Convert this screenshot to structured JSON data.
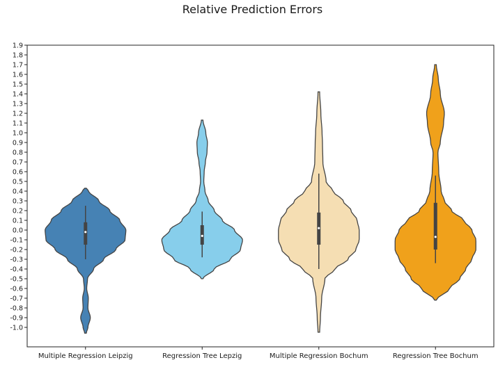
{
  "chart_data": {
    "type": "violin",
    "title": "Relative Prediction Errors",
    "xlabel": "",
    "ylabel": "",
    "categories": [
      "Multiple Regression Leipzig",
      "Regression Tree Lepzig",
      "Multiple Regression Bochum",
      "Regression Tree Bochum"
    ],
    "yticks": [
      "1.9",
      "1.8",
      "1.7",
      "1.6",
      "1.5",
      "1.4",
      "1.3",
      "1.2",
      "1.1",
      "1.0",
      "0.9",
      "0.8",
      "0.7",
      "0.6",
      "0.5",
      "0.4",
      "0.3",
      "0.2",
      "0.1",
      "0.0",
      "-0.1",
      "-0.2",
      "-0.3",
      "-0.4",
      "-0.5",
      "-0.6",
      "-0.7",
      "-0.8",
      "-0.9",
      "-1.0"
    ],
    "ylim": [
      -1.2,
      1.9
    ],
    "grid": false,
    "colors": [
      "#4682b4",
      "#87ceeb",
      "#f5deb3",
      "#f0a11b"
    ],
    "series": [
      {
        "category": "Multiple Regression Leipzig",
        "median": -0.02,
        "q1": -0.15,
        "q3": 0.08,
        "whisker_low": -0.3,
        "whisker_high": 0.25,
        "min": -1.06,
        "max": 0.43,
        "density": [
          [
            -1.06,
            0.02
          ],
          [
            -1.0,
            0.06
          ],
          [
            -0.9,
            0.12
          ],
          [
            -0.8,
            0.06
          ],
          [
            -0.7,
            0.07
          ],
          [
            -0.6,
            0.03
          ],
          [
            -0.5,
            0.05
          ],
          [
            -0.4,
            0.2
          ],
          [
            -0.3,
            0.45
          ],
          [
            -0.2,
            0.75
          ],
          [
            -0.1,
            0.98
          ],
          [
            0.0,
            1.0
          ],
          [
            0.1,
            0.85
          ],
          [
            0.2,
            0.6
          ],
          [
            0.3,
            0.33
          ],
          [
            0.4,
            0.08
          ],
          [
            0.43,
            0.02
          ]
        ]
      },
      {
        "category": "Regression Tree Lepzig",
        "median": -0.06,
        "q1": -0.15,
        "q3": 0.05,
        "whisker_low": -0.28,
        "whisker_high": 0.19,
        "min": -0.5,
        "max": 1.13,
        "density": [
          [
            -0.5,
            0.02
          ],
          [
            -0.4,
            0.3
          ],
          [
            -0.3,
            0.7
          ],
          [
            -0.2,
            0.95
          ],
          [
            -0.1,
            1.0
          ],
          [
            0.0,
            0.8
          ],
          [
            0.1,
            0.5
          ],
          [
            0.2,
            0.3
          ],
          [
            0.3,
            0.15
          ],
          [
            0.4,
            0.07
          ],
          [
            0.5,
            0.04
          ],
          [
            0.6,
            0.05
          ],
          [
            0.7,
            0.08
          ],
          [
            0.8,
            0.12
          ],
          [
            0.9,
            0.13
          ],
          [
            1.0,
            0.09
          ],
          [
            1.13,
            0.02
          ]
        ]
      },
      {
        "category": "Multiple Regression Bochum",
        "median": 0.02,
        "q1": -0.15,
        "q3": 0.18,
        "whisker_low": -0.4,
        "whisker_high": 0.58,
        "min": -1.05,
        "max": 1.42,
        "density": [
          [
            -1.05,
            0.02
          ],
          [
            -0.9,
            0.04
          ],
          [
            -0.7,
            0.07
          ],
          [
            -0.5,
            0.15
          ],
          [
            -0.4,
            0.4
          ],
          [
            -0.3,
            0.72
          ],
          [
            -0.2,
            0.92
          ],
          [
            -0.1,
            1.0
          ],
          [
            0.0,
            1.0
          ],
          [
            0.1,
            0.95
          ],
          [
            0.2,
            0.8
          ],
          [
            0.3,
            0.6
          ],
          [
            0.4,
            0.35
          ],
          [
            0.5,
            0.18
          ],
          [
            0.7,
            0.1
          ],
          [
            0.9,
            0.09
          ],
          [
            1.0,
            0.08
          ],
          [
            1.2,
            0.05
          ],
          [
            1.42,
            0.02
          ]
        ]
      },
      {
        "category": "Regression Tree Bochum",
        "median": -0.07,
        "q1": -0.2,
        "q3": 0.28,
        "whisker_low": -0.34,
        "whisker_high": 0.56,
        "min": -0.72,
        "max": 1.7,
        "density": [
          [
            -0.72,
            0.02
          ],
          [
            -0.6,
            0.35
          ],
          [
            -0.5,
            0.6
          ],
          [
            -0.4,
            0.75
          ],
          [
            -0.3,
            0.9
          ],
          [
            -0.2,
            1.0
          ],
          [
            -0.1,
            1.0
          ],
          [
            0.0,
            0.9
          ],
          [
            0.1,
            0.7
          ],
          [
            0.2,
            0.4
          ],
          [
            0.3,
            0.22
          ],
          [
            0.4,
            0.14
          ],
          [
            0.6,
            0.08
          ],
          [
            0.8,
            0.06
          ],
          [
            0.9,
            0.12
          ],
          [
            1.1,
            0.2
          ],
          [
            1.2,
            0.22
          ],
          [
            1.4,
            0.12
          ],
          [
            1.55,
            0.07
          ],
          [
            1.7,
            0.02
          ]
        ]
      }
    ]
  }
}
